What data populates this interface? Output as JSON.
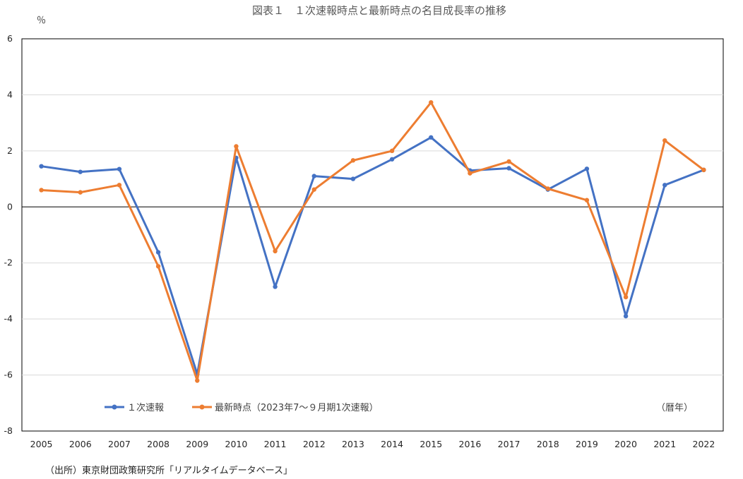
{
  "chart_data": {
    "type": "line",
    "title": "図表１　１次速報時点と最新時点の名目成長率の推移",
    "ylabel": "％",
    "xlabel_note": "（暦年）",
    "source": "（出所）東京財団政策研究所「リアルタイムデータベース」",
    "ylim": [
      -8,
      6
    ],
    "yticks": [
      6,
      4,
      2,
      0,
      -2,
      -4,
      -6,
      -8
    ],
    "grid": true,
    "legend_position": "bottom-left",
    "categories": [
      "2005",
      "2006",
      "2007",
      "2008",
      "2009",
      "2010",
      "2011",
      "2012",
      "2013",
      "2014",
      "2015",
      "2016",
      "2017",
      "2018",
      "2019",
      "2020",
      "2021",
      "2022"
    ],
    "series": [
      {
        "name": "１次速報",
        "color": "#4472C4",
        "values": [
          1.45,
          1.25,
          1.35,
          -1.62,
          -5.97,
          1.75,
          -2.85,
          1.1,
          1.0,
          1.7,
          2.48,
          1.3,
          1.38,
          0.62,
          1.36,
          -3.9,
          0.78,
          1.32
        ]
      },
      {
        "name": "最新時点（2023年7～９月期1次速報）",
        "color": "#ED7D31",
        "values": [
          0.6,
          0.52,
          0.78,
          -2.12,
          -6.2,
          2.16,
          -1.58,
          0.62,
          1.66,
          2.0,
          3.73,
          1.2,
          1.62,
          0.65,
          0.24,
          -3.22,
          2.37,
          1.32
        ]
      }
    ]
  }
}
